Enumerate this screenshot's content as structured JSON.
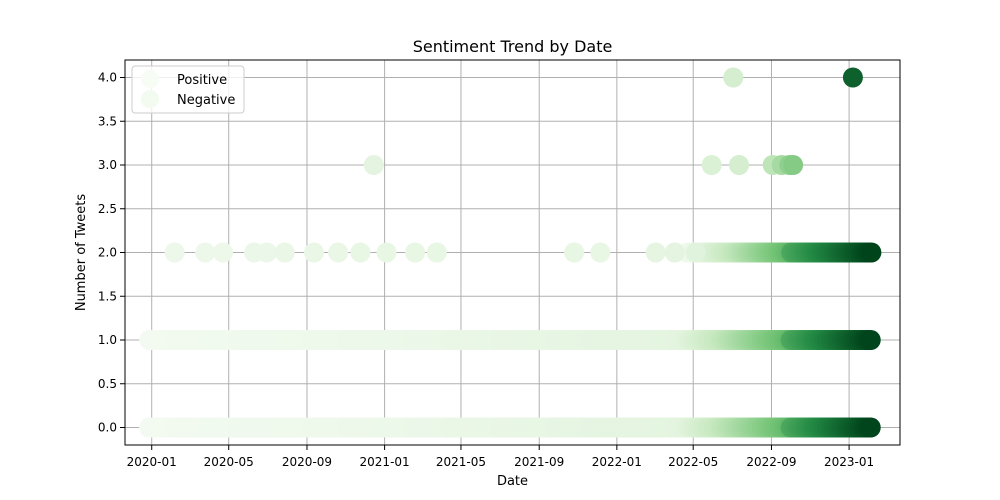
{
  "chart_data": {
    "type": "scatter",
    "title": "Sentiment Trend by Date",
    "xlabel": "Date",
    "ylabel": "Number of Tweets",
    "xlim": [
      "2019-11-20",
      "2023-03-22"
    ],
    "ylim": [
      -0.2,
      4.2
    ],
    "x_ticks": [
      "2020-01",
      "2020-05",
      "2020-09",
      "2021-01",
      "2021-05",
      "2021-09",
      "2022-01",
      "2022-05",
      "2022-09",
      "2023-01"
    ],
    "y_ticks": [
      "0.0",
      "0.5",
      "1.0",
      "1.5",
      "2.0",
      "2.5",
      "3.0",
      "3.5",
      "4.0"
    ],
    "grid": true,
    "legend_position": "top-left",
    "colormap": "Greens",
    "color_scale": [
      "#f7fcf5",
      "#c7e9c0",
      "#74c476",
      "#238b45",
      "#00441b"
    ],
    "series": [
      {
        "name": "Positive",
        "points": [
          {
            "x": "2020-02-06",
            "y": 2,
            "c": 0.05
          },
          {
            "x": "2020-03-25",
            "y": 2,
            "c": 0.05
          },
          {
            "x": "2020-04-22",
            "y": 2,
            "c": 0.05
          },
          {
            "x": "2020-06-10",
            "y": 2,
            "c": 0.06
          },
          {
            "x": "2020-06-30",
            "y": 2,
            "c": 0.06
          },
          {
            "x": "2020-07-28",
            "y": 2,
            "c": 0.07
          },
          {
            "x": "2020-09-12",
            "y": 2,
            "c": 0.07
          },
          {
            "x": "2020-10-20",
            "y": 2,
            "c": 0.07
          },
          {
            "x": "2020-11-24",
            "y": 2,
            "c": 0.08
          },
          {
            "x": "2021-01-04",
            "y": 2,
            "c": 0.08
          },
          {
            "x": "2021-02-18",
            "y": 2,
            "c": 0.08
          },
          {
            "x": "2021-03-24",
            "y": 2,
            "c": 0.08
          },
          {
            "x": "2021-10-26",
            "y": 2,
            "c": 0.08
          },
          {
            "x": "2021-12-06",
            "y": 2,
            "c": 0.08
          },
          {
            "x": "2022-03-03",
            "y": 2,
            "c": 0.09
          },
          {
            "x": "2022-04-02",
            "y": 2,
            "c": 0.1
          },
          {
            "x": "2022-05-05",
            "y": 2,
            "c": 0.12
          },
          {
            "x": "2020-12-15",
            "y": 3,
            "c": 0.1
          },
          {
            "x": "2022-05-30",
            "y": 3,
            "c": 0.15
          },
          {
            "x": "2022-07-12",
            "y": 3,
            "c": 0.18
          },
          {
            "x": "2022-09-03",
            "y": 3,
            "c": 0.28
          },
          {
            "x": "2022-09-17",
            "y": 3,
            "c": 0.35
          },
          {
            "x": "2022-09-29",
            "y": 3,
            "c": 0.42
          },
          {
            "x": "2022-10-05",
            "y": 3,
            "c": 0.45
          },
          {
            "x": "2022-07-03",
            "y": 4,
            "c": 0.18
          },
          {
            "x": "2023-01-07",
            "y": 4,
            "c": 0.9
          }
        ]
      },
      {
        "name": "Negative",
        "points": []
      }
    ],
    "dense_bands": [
      {
        "y": 0,
        "start": "2019-12-28",
        "end": "2023-02-05",
        "light_until": "2022-04-15",
        "dark_from": "2022-10-01"
      },
      {
        "y": 1,
        "start": "2019-12-28",
        "end": "2023-02-05",
        "light_until": "2022-04-15",
        "dark_from": "2022-10-01"
      },
      {
        "y": 2,
        "start": "2022-04-20",
        "end": "2023-02-05",
        "light_until": "2022-05-15",
        "dark_from": "2022-10-01"
      }
    ]
  }
}
